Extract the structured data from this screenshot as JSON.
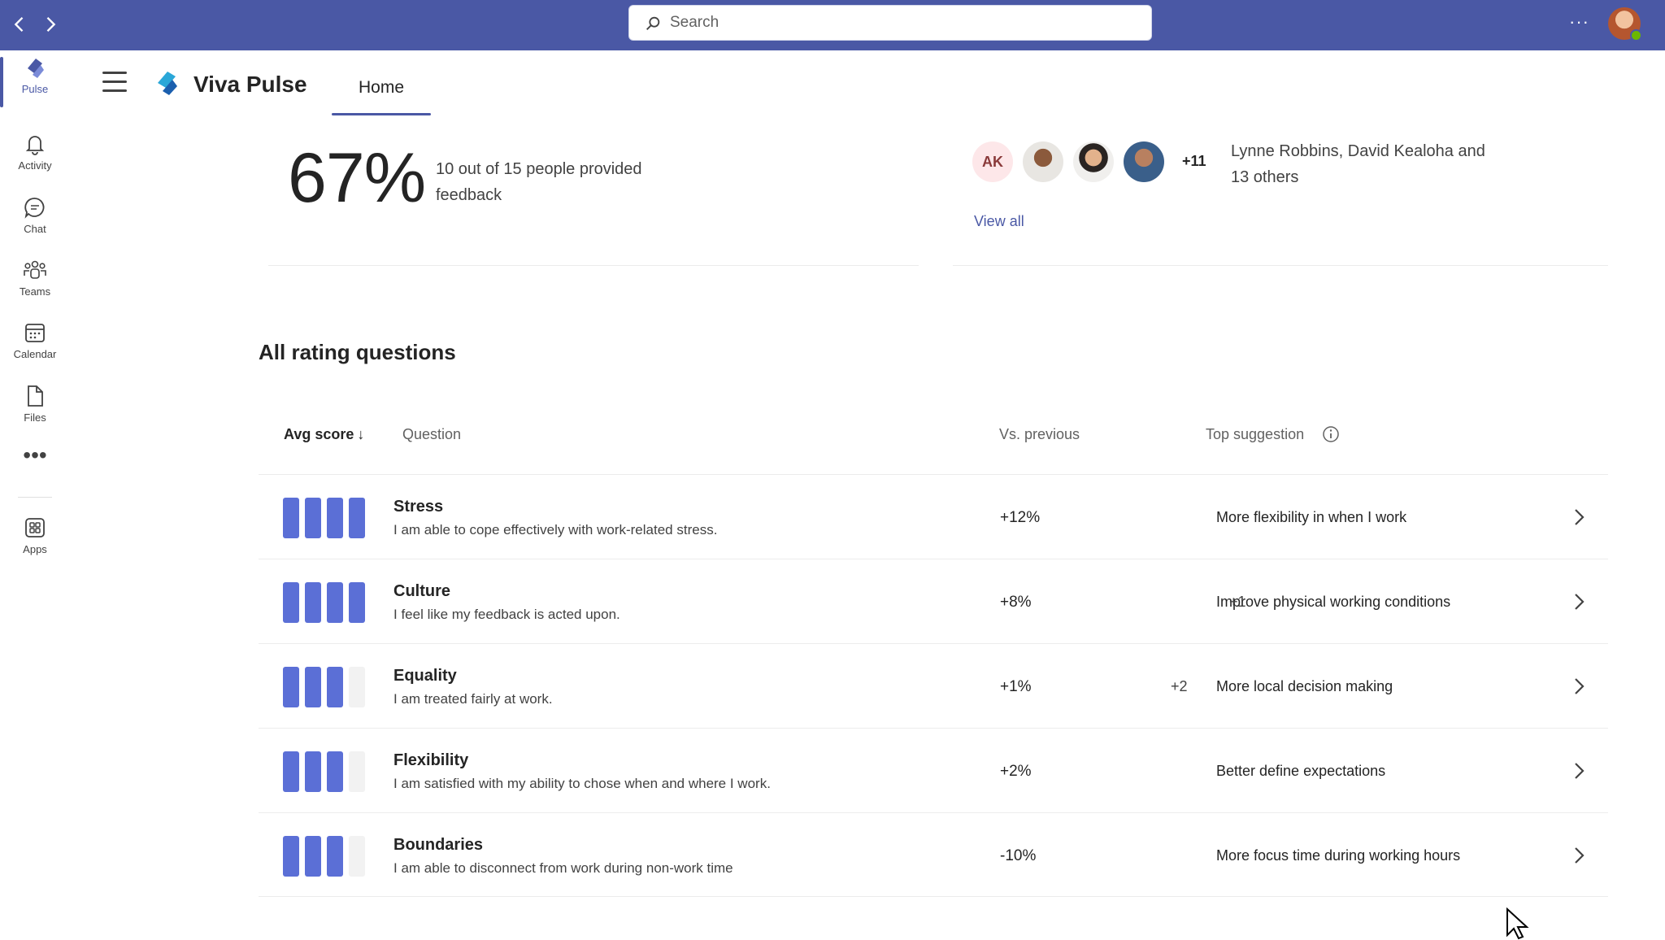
{
  "titlebar": {
    "search_placeholder": "Search",
    "more_label": "···"
  },
  "rail": {
    "items": [
      {
        "label": "Pulse",
        "icon": "pulse-icon",
        "active": true
      },
      {
        "label": "Activity",
        "icon": "bell-icon"
      },
      {
        "label": "Chat",
        "icon": "chat-icon"
      },
      {
        "label": "Teams",
        "icon": "teams-icon"
      },
      {
        "label": "Calendar",
        "icon": "calendar-icon"
      },
      {
        "label": "Files",
        "icon": "file-icon"
      },
      {
        "label": "Apps",
        "icon": "apps-icon"
      }
    ],
    "more_label": "•••"
  },
  "header": {
    "app_name": "Viva Pulse",
    "tab_home": "Home"
  },
  "summary": {
    "percent": "67%",
    "description": "10 out of 15 people provided feedback",
    "initials": "AK",
    "more_count": "+11",
    "names": "Lynne Robbins, David Kealoha and 13 others",
    "view_all": "View all"
  },
  "ratings": {
    "title": "All rating questions",
    "columns": {
      "avg_score": "Avg score",
      "question": "Question",
      "vs_previous": "Vs. previous",
      "top_suggestion": "Top suggestion"
    },
    "rows": [
      {
        "title": "Stress",
        "desc": "I am able to cope effectively with work-related stress.",
        "change": "+12%",
        "suggestion": "More flexibility in when I work",
        "extra": "",
        "score_bars": 4
      },
      {
        "title": "Culture",
        "desc": "I feel like my feedback is acted upon.",
        "change": "+8%",
        "suggestion": "Improve physical working conditions",
        "extra": "+1",
        "score_bars": 4
      },
      {
        "title": "Equality",
        "desc": "I am treated fairly at work.",
        "change": "+1%",
        "suggestion": "More local decision making",
        "extra": "+2",
        "score_bars": 3
      },
      {
        "title": "Flexibility",
        "desc": "I am satisfied with my ability to chose when and where I work.",
        "change": "+2%",
        "suggestion": "Better define expectations",
        "extra": "",
        "score_bars": 3
      },
      {
        "title": "Boundaries",
        "desc": "I am able to disconnect from work during non-work time",
        "change": "-10%",
        "suggestion": "More focus time during working hours",
        "extra": "",
        "score_bars": 3
      }
    ]
  },
  "colors": {
    "accent": "#4a58a5",
    "bar_on": "#5b6fd6",
    "bar_off": "#f2f2f2"
  }
}
